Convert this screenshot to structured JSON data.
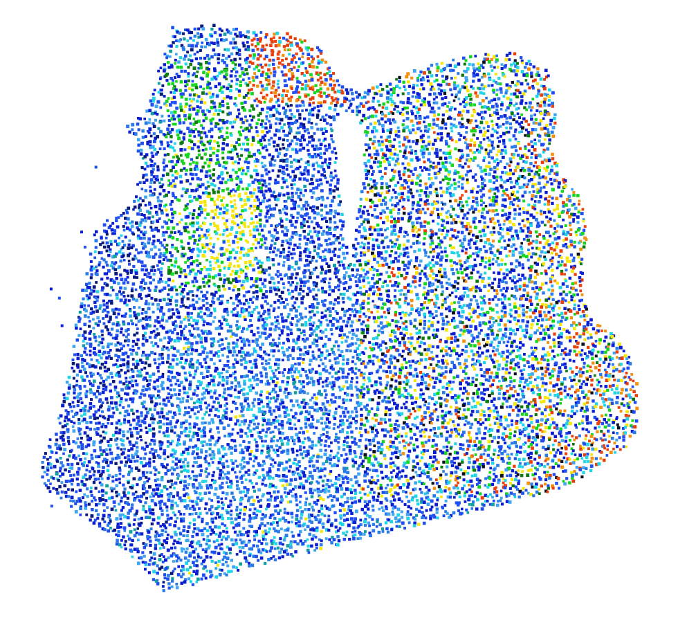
{
  "visualization": {
    "kind": "3d point cloud",
    "background": "#ffffff",
    "marker": "square",
    "colormap": "jet-like",
    "palette": {
      "navy": "#0a1a7a",
      "deep_blue": "#0b1fd0",
      "blue": "#1f4ff0",
      "azure": "#2a7be8",
      "sky": "#3fa7f0",
      "cyan": "#1fd5e6",
      "teal": "#13a0a0",
      "green": "#17d61f",
      "dark_green": "#0e7a12",
      "yellow": "#f6e60c",
      "orange": "#f29010",
      "red_orange": "#e8400c",
      "dark": "#0d1020"
    }
  }
}
